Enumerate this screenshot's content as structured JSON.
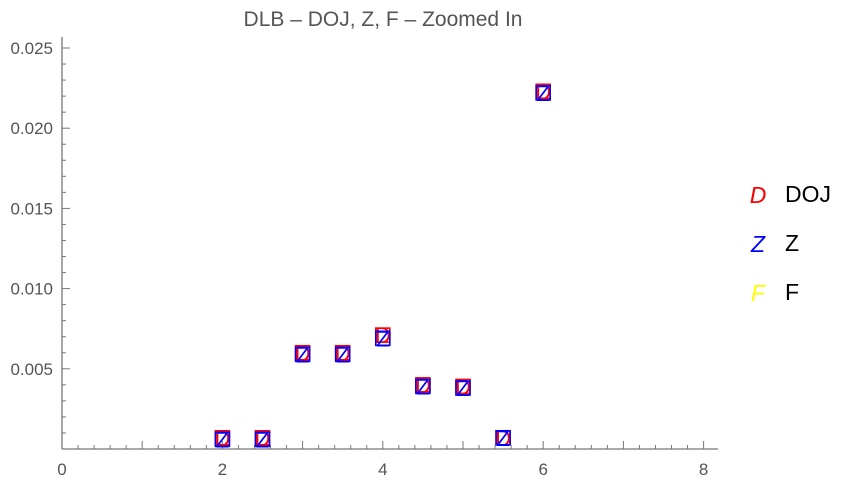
{
  "chart_data": {
    "type": "scatter",
    "title": "DLB – DOJ, Z, F – Zoomed In",
    "xlabel": "",
    "ylabel": "",
    "xlim": [
      0,
      8.2
    ],
    "ylim": [
      0,
      0.026
    ],
    "x_ticks": [
      "0",
      "2",
      "4",
      "6",
      "8"
    ],
    "y_ticks": [
      "0.005",
      "0.010",
      "0.015",
      "0.020",
      "0.025"
    ],
    "grid": false,
    "legend_position": "right",
    "series": [
      {
        "name": "DOJ",
        "marker": "D",
        "color": "#ff0000",
        "points": [
          [
            2,
            0.0007
          ],
          [
            2.5,
            0.0007
          ],
          [
            3,
            0.006
          ],
          [
            3.5,
            0.006
          ],
          [
            4,
            0.0071
          ],
          [
            4.5,
            0.004
          ],
          [
            5,
            0.0039
          ],
          [
            5.5,
            0.0007
          ],
          [
            6,
            0.0223
          ]
        ]
      },
      {
        "name": "Z",
        "marker": "Z",
        "color": "#0000ff",
        "points": [
          [
            2,
            0.0006
          ],
          [
            2.5,
            0.0006
          ],
          [
            3,
            0.0059
          ],
          [
            3.5,
            0.0059
          ],
          [
            4,
            0.0069
          ],
          [
            4.5,
            0.0039
          ],
          [
            5,
            0.0038
          ],
          [
            5.5,
            0.0007
          ],
          [
            6,
            0.0222
          ]
        ]
      },
      {
        "name": "F",
        "marker": "F",
        "color": "#ffff00",
        "points": []
      }
    ]
  }
}
